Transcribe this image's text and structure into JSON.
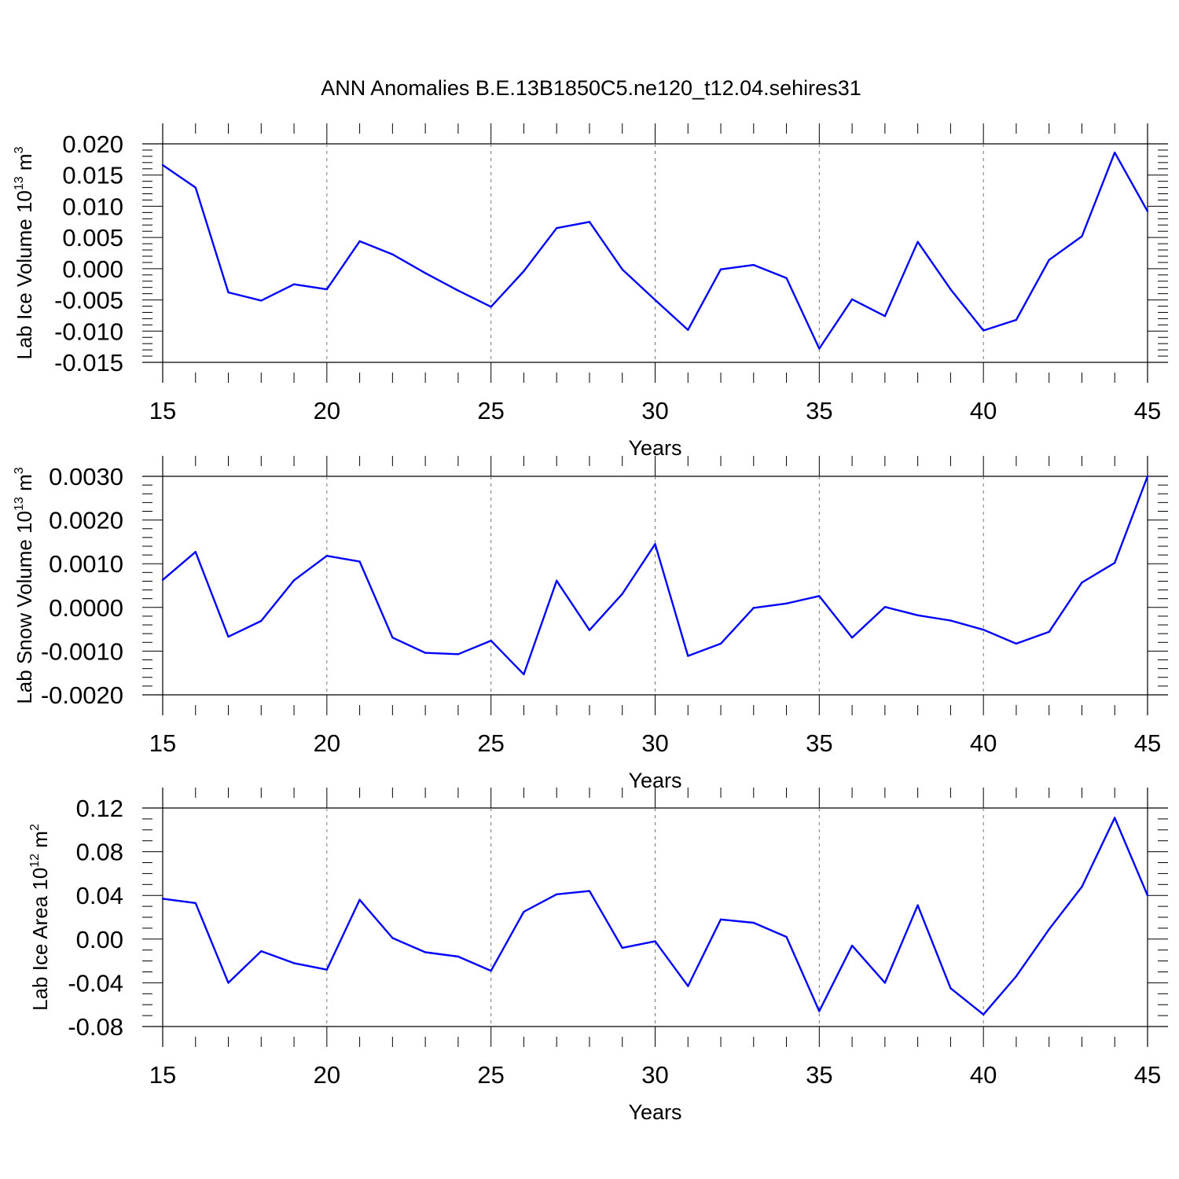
{
  "title": "ANN Anomalies B.E.13B1850C5.ne120_t12.04.sehires31",
  "chart_data": [
    {
      "type": "line",
      "name": "lab-ice-volume",
      "title": "ANN Anomalies B.E.13B1850C5.ne120_t12.04.sehires31",
      "xlabel": "Years",
      "ylabel_main": "Lab Ice Volume 10",
      "ylabel_exp": "13",
      "ylabel_unit": " m",
      "ylabel_unit_exp": "3",
      "xlim": [
        15,
        45
      ],
      "ylim": [
        -0.015,
        0.02
      ],
      "xticks": [
        15,
        20,
        25,
        30,
        35,
        40,
        45
      ],
      "xtick_labels": [
        "15",
        "20",
        "25",
        "30",
        "35",
        "40",
        "45"
      ],
      "yticks": [
        -0.015,
        -0.01,
        -0.005,
        0.0,
        0.005,
        0.01,
        0.015,
        0.02
      ],
      "ytick_labels": [
        "-0.015",
        "-0.010",
        "-0.005",
        "0.000",
        "0.005",
        "0.010",
        "0.015",
        "0.020"
      ],
      "y_minor_step": 0.001,
      "grid_x": [
        20,
        25,
        30,
        35,
        40
      ],
      "color": "#0000ff",
      "x": [
        15,
        16,
        17,
        18,
        19,
        20,
        21,
        22,
        23,
        24,
        25,
        26,
        27,
        28,
        29,
        30,
        31,
        32,
        33,
        34,
        35,
        36,
        37,
        38,
        39,
        40,
        41,
        42,
        43,
        44,
        45
      ],
      "values": [
        0.0166,
        0.013,
        -0.0038,
        -0.0051,
        -0.0025,
        -0.0033,
        0.0044,
        0.0023,
        -0.0007,
        -0.0035,
        -0.0061,
        -0.0004,
        0.0065,
        0.0075,
        -0.0001,
        -0.005,
        -0.0098,
        -0.0001,
        0.0006,
        -0.0015,
        -0.0128,
        -0.0049,
        -0.0076,
        0.0043,
        -0.0033,
        -0.0099,
        -0.0082,
        0.0014,
        0.0052,
        0.0186,
        0.0092
      ]
    },
    {
      "type": "line",
      "name": "lab-snow-volume",
      "xlabel": "Years",
      "ylabel_main": "Lab Snow Volume 10",
      "ylabel_exp": "13",
      "ylabel_unit": " m",
      "ylabel_unit_exp": "3",
      "xlim": [
        15,
        45
      ],
      "ylim": [
        -0.002,
        0.003
      ],
      "xticks": [
        15,
        20,
        25,
        30,
        35,
        40,
        45
      ],
      "xtick_labels": [
        "15",
        "20",
        "25",
        "30",
        "35",
        "40",
        "45"
      ],
      "yticks": [
        -0.002,
        -0.001,
        0.0,
        0.001,
        0.002,
        0.003
      ],
      "ytick_labels": [
        "-0.0020",
        "-0.0010",
        "0.0000",
        "0.0010",
        "0.0020",
        "0.0030"
      ],
      "y_minor_step": 0.0002,
      "grid_x": [
        20,
        25,
        30,
        35,
        40
      ],
      "color": "#0000ff",
      "x": [
        15,
        16,
        17,
        18,
        19,
        20,
        21,
        22,
        23,
        24,
        25,
        26,
        27,
        28,
        29,
        30,
        31,
        32,
        33,
        34,
        35,
        36,
        37,
        38,
        39,
        40,
        41,
        42,
        43,
        44,
        45
      ],
      "values": [
        0.00063,
        0.00127,
        -0.00067,
        -0.00031,
        0.00062,
        0.00118,
        0.00105,
        -0.00069,
        -0.00104,
        -0.00107,
        -0.00076,
        -0.00153,
        0.00061,
        -0.00052,
        0.00031,
        0.00145,
        -0.00111,
        -0.00083,
        -1e-05,
        9e-05,
        0.00026,
        -0.00069,
        1e-05,
        -0.00018,
        -0.0003,
        -0.00051,
        -0.00083,
        -0.00056,
        0.00057,
        0.00102,
        0.003
      ]
    },
    {
      "type": "line",
      "name": "lab-ice-area",
      "xlabel": "Years",
      "ylabel_main": "Lab Ice Area 10",
      "ylabel_exp": "12",
      "ylabel_unit": " m",
      "ylabel_unit_exp": "2",
      "xlim": [
        15,
        45
      ],
      "ylim": [
        -0.09,
        0.12
      ],
      "xticks": [
        15,
        20,
        25,
        30,
        35,
        40,
        45
      ],
      "xtick_labels": [
        "15",
        "20",
        "25",
        "30",
        "35",
        "40",
        "45"
      ],
      "yticks": [
        -0.08,
        -0.04,
        0.0,
        0.04,
        0.08,
        0.12
      ],
      "ytick_labels": [
        "-0.08",
        "-0.04",
        "0.00",
        "0.04",
        "0.08",
        "0.12"
      ],
      "y_minor_step": 0.01,
      "grid_x": [
        20,
        25,
        30,
        35,
        40
      ],
      "color": "#0000ff",
      "x": [
        15,
        16,
        17,
        18,
        19,
        20,
        21,
        22,
        23,
        24,
        25,
        26,
        27,
        28,
        29,
        30,
        31,
        32,
        33,
        34,
        35,
        36,
        37,
        38,
        39,
        40,
        41,
        42,
        43,
        44,
        45
      ],
      "values": [
        0.037,
        0.033,
        -0.04,
        -0.011,
        -0.022,
        -0.028,
        0.036,
        0.001,
        -0.012,
        -0.016,
        -0.029,
        0.025,
        0.041,
        0.044,
        -0.008,
        -0.002,
        -0.043,
        0.018,
        0.015,
        0.002,
        -0.066,
        -0.006,
        -0.04,
        0.031,
        -0.045,
        -0.069,
        -0.034,
        0.009,
        0.048,
        0.111,
        0.04
      ]
    }
  ]
}
